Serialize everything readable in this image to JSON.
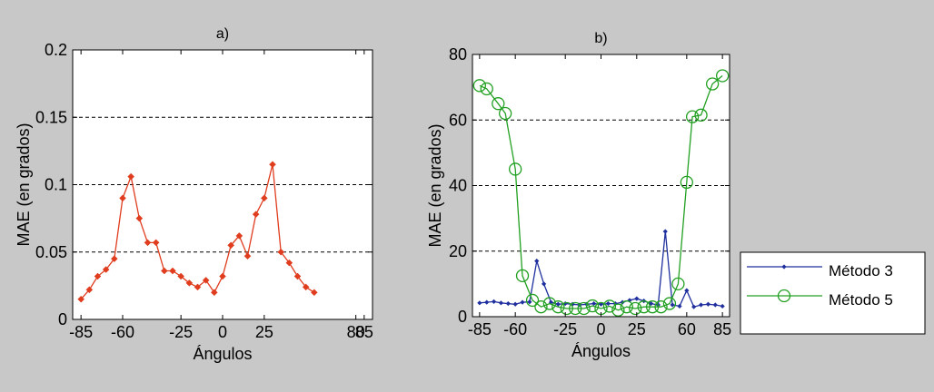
{
  "chart_data": [
    {
      "type": "line",
      "title": "a)",
      "xlabel": "Ángulos",
      "ylabel": "MAE (en grados)",
      "xlim": [
        -90,
        90
      ],
      "ylim": [
        0,
        0.2
      ],
      "xticks": [
        -85,
        -60,
        -25,
        0,
        25,
        80,
        85
      ],
      "xtick_labels": [
        "-85",
        "-60",
        "-25",
        "0",
        "25",
        "80",
        "85"
      ],
      "yticks": [
        0,
        0.05,
        0.1,
        0.15,
        0.2
      ],
      "ytick_labels": [
        "0",
        "0.05",
        "0.1",
        "0.15",
        "0.2"
      ],
      "grid": "horizontal-dashed",
      "series": [
        {
          "color": "#e03c1e",
          "marker": "diamond",
          "points": [
            [
              -85,
              0.015
            ],
            [
              -80,
              0.022
            ],
            [
              -75,
              0.032
            ],
            [
              -70,
              0.037
            ],
            [
              -65,
              0.045
            ],
            [
              -60,
              0.09
            ],
            [
              -55,
              0.106
            ],
            [
              -50,
              0.075
            ],
            [
              -45,
              0.057
            ],
            [
              -40,
              0.057
            ],
            [
              -35,
              0.036
            ],
            [
              -30,
              0.036
            ],
            [
              -25,
              0.032
            ],
            [
              -20,
              0.027
            ],
            [
              -15,
              0.024
            ],
            [
              -10,
              0.029
            ],
            [
              -5,
              0.02
            ],
            [
              0,
              0.032
            ],
            [
              5,
              0.055
            ],
            [
              10,
              0.062
            ],
            [
              15,
              0.047
            ],
            [
              20,
              0.078
            ],
            [
              25,
              0.09
            ],
            [
              30,
              0.115
            ],
            [
              35,
              0.05
            ],
            [
              40,
              0.042
            ],
            [
              45,
              0.032
            ],
            [
              50,
              0.024
            ],
            [
              55,
              0.02
            ]
          ]
        }
      ]
    },
    {
      "type": "line",
      "title": "b)",
      "xlabel": "Ángulos",
      "ylabel": "MAE (en grados)",
      "xlim": [
        -90,
        90
      ],
      "ylim": [
        0,
        80
      ],
      "xticks": [
        -85,
        -60,
        -25,
        0,
        25,
        60,
        85
      ],
      "xtick_labels": [
        "-85",
        "-60",
        "-25",
        "0",
        "25",
        "60",
        "85"
      ],
      "yticks": [
        0,
        20,
        40,
        60,
        80
      ],
      "ytick_labels": [
        "0",
        "20",
        "40",
        "60",
        "80"
      ],
      "grid": "horizontal-dashed",
      "legend_position": "outside-right",
      "series": [
        {
          "name": "Método 3",
          "color": "#1f2f9e",
          "marker": "dot",
          "points": [
            [
              -85,
              4.2
            ],
            [
              -80,
              4.4
            ],
            [
              -75,
              4.6
            ],
            [
              -70,
              4.2
            ],
            [
              -65,
              4.0
            ],
            [
              -60,
              3.8
            ],
            [
              -55,
              4.4
            ],
            [
              -50,
              4.5
            ],
            [
              -45,
              17
            ],
            [
              -40,
              10
            ],
            [
              -35,
              4.4
            ],
            [
              -30,
              3.8
            ],
            [
              -25,
              4.0
            ],
            [
              -20,
              3.8
            ],
            [
              -15,
              3.6
            ],
            [
              -10,
              3.8
            ],
            [
              -5,
              4.0
            ],
            [
              0,
              3.8
            ],
            [
              5,
              4.0
            ],
            [
              10,
              4.0
            ],
            [
              15,
              4.4
            ],
            [
              20,
              5.0
            ],
            [
              25,
              5.5
            ],
            [
              30,
              4.8
            ],
            [
              35,
              4.0
            ],
            [
              40,
              3.6
            ],
            [
              45,
              26
            ],
            [
              50,
              3.6
            ],
            [
              55,
              3.2
            ],
            [
              60,
              8
            ],
            [
              65,
              3.0
            ],
            [
              70,
              3.6
            ],
            [
              75,
              3.8
            ],
            [
              80,
              3.6
            ],
            [
              85,
              3.2
            ]
          ]
        },
        {
          "name": "Método 5",
          "color": "#22a022",
          "marker": "circle",
          "points": [
            [
              -85,
              70.5
            ],
            [
              -80,
              69.5
            ],
            [
              -72,
              65
            ],
            [
              -67,
              62
            ],
            [
              -60,
              45
            ],
            [
              -55,
              12.5
            ],
            [
              -48,
              5
            ],
            [
              -42,
              3
            ],
            [
              -36,
              4
            ],
            [
              -30,
              3
            ],
            [
              -24,
              2.5
            ],
            [
              -18,
              2.5
            ],
            [
              -12,
              2.5
            ],
            [
              -6,
              3.3
            ],
            [
              0,
              2.5
            ],
            [
              6,
              3.2
            ],
            [
              12,
              2
            ],
            [
              18,
              3
            ],
            [
              24,
              2.5
            ],
            [
              30,
              3
            ],
            [
              36,
              3
            ],
            [
              42,
              3
            ],
            [
              48,
              4
            ],
            [
              54,
              10
            ],
            [
              60,
              41
            ],
            [
              64,
              61
            ],
            [
              70,
              61.5
            ],
            [
              78,
              71
            ],
            [
              85,
              73.5
            ]
          ]
        }
      ]
    }
  ]
}
